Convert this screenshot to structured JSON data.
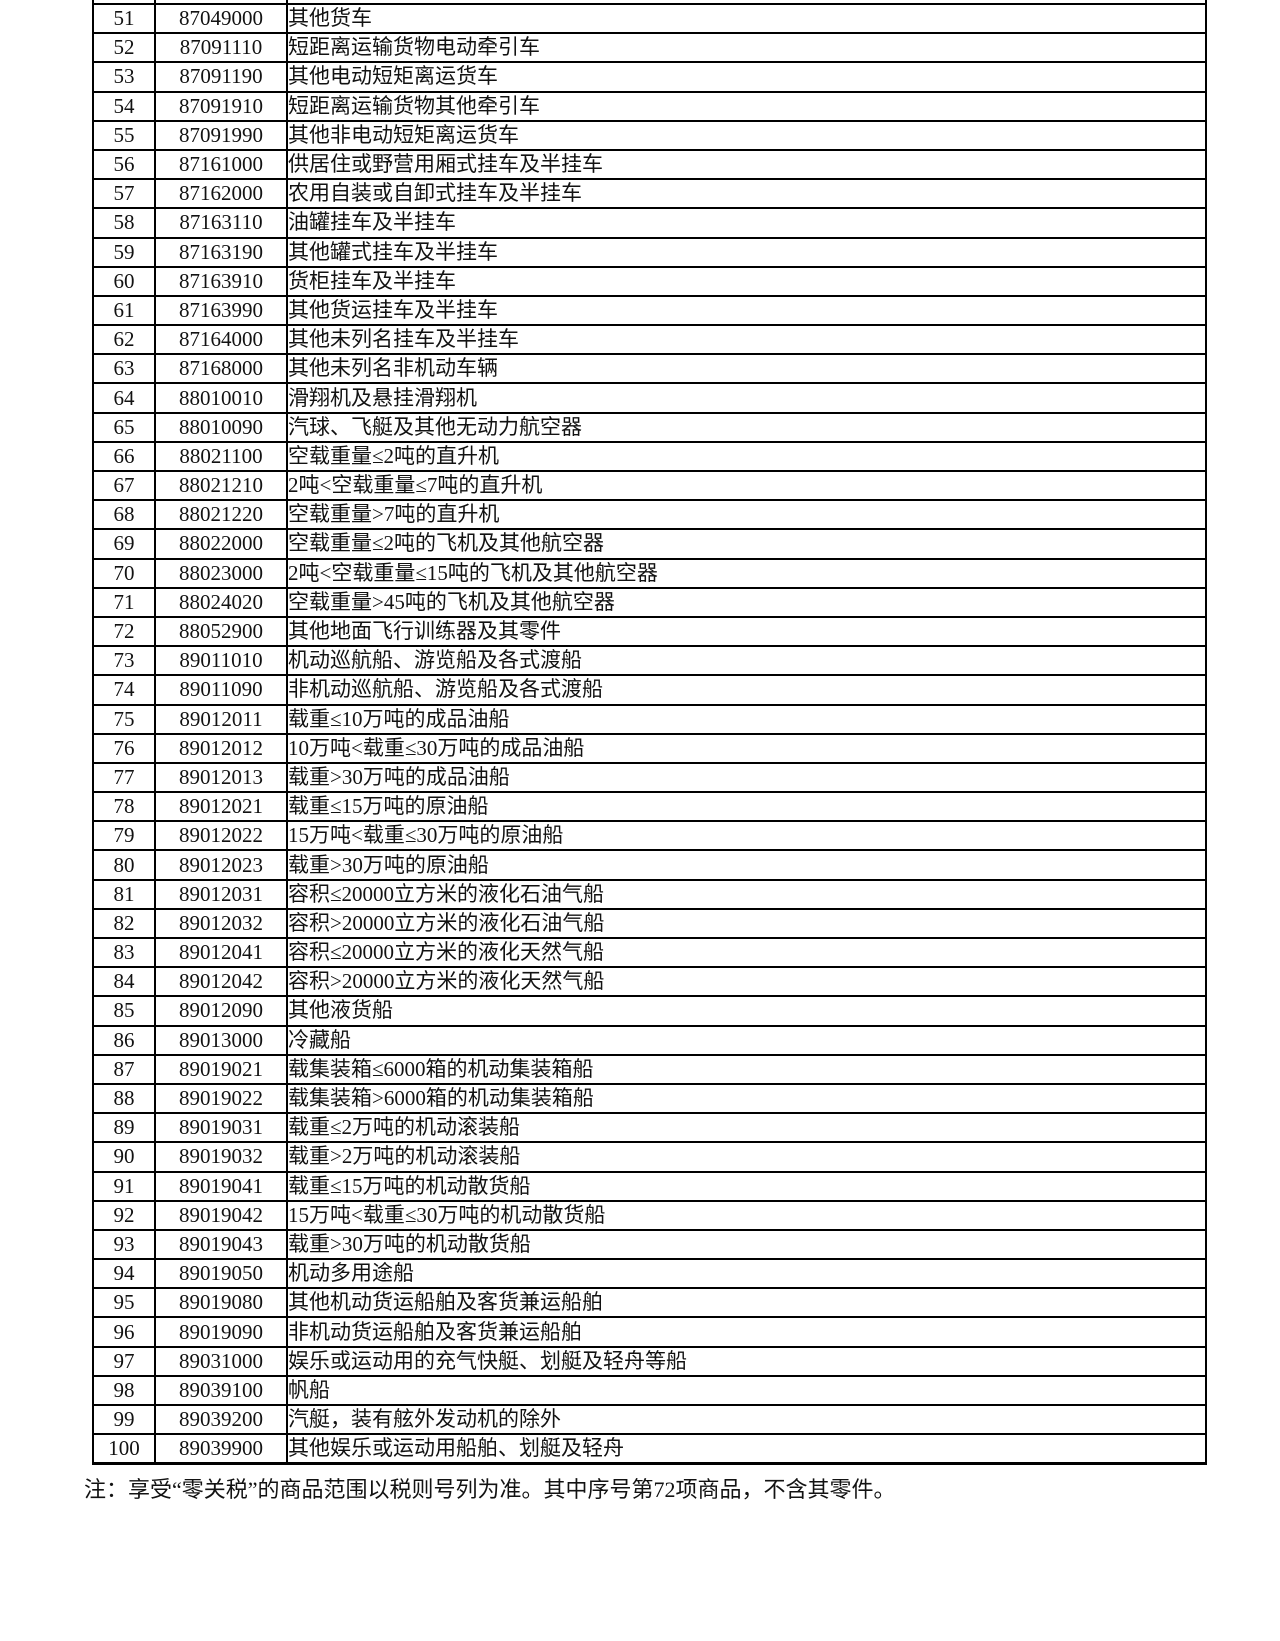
{
  "note": "注：享受“零关税”的商品范围以税则号列为准。其中序号第72项商品，不含其零件。",
  "table": {
    "rows": [
      {
        "no": "51",
        "code": "87049000",
        "desc": "其他货车"
      },
      {
        "no": "52",
        "code": "87091110",
        "desc": "短距离运输货物电动牵引车"
      },
      {
        "no": "53",
        "code": "87091190",
        "desc": "其他电动短矩离运货车"
      },
      {
        "no": "54",
        "code": "87091910",
        "desc": "短距离运输货物其他牵引车"
      },
      {
        "no": "55",
        "code": "87091990",
        "desc": "其他非电动短矩离运货车"
      },
      {
        "no": "56",
        "code": "87161000",
        "desc": "供居住或野营用厢式挂车及半挂车"
      },
      {
        "no": "57",
        "code": "87162000",
        "desc": "农用自装或自卸式挂车及半挂车"
      },
      {
        "no": "58",
        "code": "87163110",
        "desc": "油罐挂车及半挂车"
      },
      {
        "no": "59",
        "code": "87163190",
        "desc": "其他罐式挂车及半挂车"
      },
      {
        "no": "60",
        "code": "87163910",
        "desc": "货柜挂车及半挂车"
      },
      {
        "no": "61",
        "code": "87163990",
        "desc": "其他货运挂车及半挂车"
      },
      {
        "no": "62",
        "code": "87164000",
        "desc": "其他未列名挂车及半挂车"
      },
      {
        "no": "63",
        "code": "87168000",
        "desc": "其他未列名非机动车辆"
      },
      {
        "no": "64",
        "code": "88010010",
        "desc": "滑翔机及悬挂滑翔机"
      },
      {
        "no": "65",
        "code": "88010090",
        "desc": "汽球、飞艇及其他无动力航空器"
      },
      {
        "no": "66",
        "code": "88021100",
        "desc": "空载重量≤2吨的直升机"
      },
      {
        "no": "67",
        "code": "88021210",
        "desc": "2吨<空载重量≤7吨的直升机"
      },
      {
        "no": "68",
        "code": "88021220",
        "desc": "空载重量>7吨的直升机"
      },
      {
        "no": "69",
        "code": "88022000",
        "desc": "空载重量≤2吨的飞机及其他航空器"
      },
      {
        "no": "70",
        "code": "88023000",
        "desc": "2吨<空载重量≤15吨的飞机及其他航空器"
      },
      {
        "no": "71",
        "code": "88024020",
        "desc": "空载重量>45吨的飞机及其他航空器"
      },
      {
        "no": "72",
        "code": "88052900",
        "desc": "其他地面飞行训练器及其零件"
      },
      {
        "no": "73",
        "code": "89011010",
        "desc": "机动巡航船、游览船及各式渡船"
      },
      {
        "no": "74",
        "code": "89011090",
        "desc": "非机动巡航船、游览船及各式渡船"
      },
      {
        "no": "75",
        "code": "89012011",
        "desc": "载重≤10万吨的成品油船"
      },
      {
        "no": "76",
        "code": "89012012",
        "desc": "10万吨<载重≤30万吨的成品油船"
      },
      {
        "no": "77",
        "code": "89012013",
        "desc": "载重>30万吨的成品油船"
      },
      {
        "no": "78",
        "code": "89012021",
        "desc": "载重≤15万吨的原油船"
      },
      {
        "no": "79",
        "code": "89012022",
        "desc": "15万吨<载重≤30万吨的原油船"
      },
      {
        "no": "80",
        "code": "89012023",
        "desc": "载重>30万吨的原油船"
      },
      {
        "no": "81",
        "code": "89012031",
        "desc": "容积≤20000立方米的液化石油气船"
      },
      {
        "no": "82",
        "code": "89012032",
        "desc": "容积>20000立方米的液化石油气船"
      },
      {
        "no": "83",
        "code": "89012041",
        "desc": "容积≤20000立方米的液化天然气船"
      },
      {
        "no": "84",
        "code": "89012042",
        "desc": "容积>20000立方米的液化天然气船"
      },
      {
        "no": "85",
        "code": "89012090",
        "desc": "其他液货船"
      },
      {
        "no": "86",
        "code": "89013000",
        "desc": "冷藏船"
      },
      {
        "no": "87",
        "code": "89019021",
        "desc": "载集装箱≤6000箱的机动集装箱船"
      },
      {
        "no": "88",
        "code": "89019022",
        "desc": "载集装箱>6000箱的机动集装箱船"
      },
      {
        "no": "89",
        "code": "89019031",
        "desc": "载重≤2万吨的机动滚装船"
      },
      {
        "no": "90",
        "code": "89019032",
        "desc": "载重>2万吨的机动滚装船"
      },
      {
        "no": "91",
        "code": "89019041",
        "desc": "载重≤15万吨的机动散货船"
      },
      {
        "no": "92",
        "code": "89019042",
        "desc": "15万吨<载重≤30万吨的机动散货船"
      },
      {
        "no": "93",
        "code": "89019043",
        "desc": "载重>30万吨的机动散货船"
      },
      {
        "no": "94",
        "code": "89019050",
        "desc": "机动多用途船"
      },
      {
        "no": "95",
        "code": "89019080",
        "desc": "其他机动货运船舶及客货兼运船舶"
      },
      {
        "no": "96",
        "code": "89019090",
        "desc": "非机动货运船舶及客货兼运船舶"
      },
      {
        "no": "97",
        "code": "89031000",
        "desc": "娱乐或运动用的充气快艇、划艇及轻舟等船"
      },
      {
        "no": "98",
        "code": "89039100",
        "desc": "帆船"
      },
      {
        "no": "99",
        "code": "89039200",
        "desc": "汽艇，装有舷外发动机的除外"
      },
      {
        "no": "100",
        "code": "89039900",
        "desc": "其他娱乐或运动用船舶、划艇及轻舟"
      }
    ]
  }
}
